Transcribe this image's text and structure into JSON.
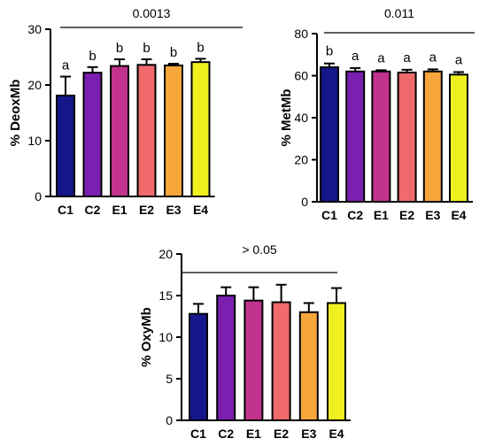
{
  "chart_data": [
    {
      "type": "bar",
      "ylabel": "% DeoxMb",
      "ylim": [
        0,
        30
      ],
      "yticks": [
        0,
        10,
        20,
        30
      ],
      "categories": [
        "C1",
        "C2",
        "E1",
        "E2",
        "E3",
        "E4"
      ],
      "values": [
        18.1,
        22.2,
        23.4,
        23.6,
        23.5,
        24.1
      ],
      "errors": [
        3.4,
        1.0,
        1.2,
        1.0,
        0.3,
        0.6
      ],
      "letters": [
        "a",
        "b",
        "b",
        "b",
        "b",
        "b"
      ],
      "p_value": "0.0013"
    },
    {
      "type": "bar",
      "ylabel": "% MetMb",
      "ylim": [
        0,
        80
      ],
      "yticks": [
        0,
        20,
        40,
        60,
        80
      ],
      "categories": [
        "C1",
        "C2",
        "E1",
        "E2",
        "E3",
        "E4"
      ],
      "values": [
        64,
        62,
        62,
        61.5,
        62,
        60.5
      ],
      "errors": [
        1.8,
        1.6,
        0.6,
        1.3,
        1.0,
        1.2
      ],
      "letters": [
        "b",
        "a",
        "a",
        "a",
        "a",
        "a"
      ],
      "p_value": "0.011"
    },
    {
      "type": "bar",
      "ylabel": "% OxyMb",
      "ylim": [
        0,
        20
      ],
      "yticks": [
        0,
        5,
        10,
        15,
        20
      ],
      "categories": [
        "C1",
        "C2",
        "E1",
        "E2",
        "E3",
        "E4"
      ],
      "values": [
        12.8,
        15.0,
        14.4,
        14.2,
        13.0,
        14.1
      ],
      "errors": [
        1.2,
        1.0,
        1.6,
        2.1,
        1.1,
        1.8
      ],
      "letters": [],
      "p_value": "> 0.05"
    }
  ],
  "colors": {
    "C1": "#15168a",
    "C2": "#7b1fb0",
    "E1": "#c2338d",
    "E2": "#f06a6c",
    "E3": "#f8a63b",
    "E4": "#f0f020"
  }
}
